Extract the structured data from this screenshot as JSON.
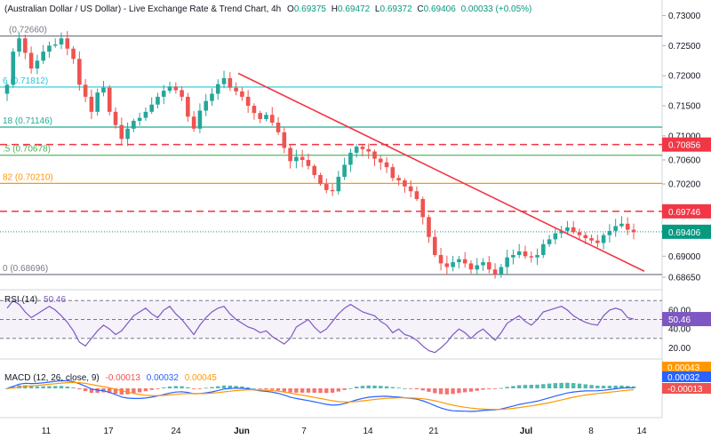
{
  "header": {
    "title": "(Australian Dollar / US Dollar) - Live Exchange Rate & Trend Chart, 4h",
    "open_label": "O",
    "open": "0.69375",
    "high_label": "H",
    "high": "0.69472",
    "low_label": "L",
    "low": "0.69372",
    "close_label": "C",
    "close": "0.69406",
    "change": "0.00033 (+0.05%)"
  },
  "colors": {
    "up": "#26a69a",
    "down": "#ef5350",
    "trend": "#f23645",
    "rsi": "#7e57c2",
    "macd": "#2962ff",
    "signal": "#ff9800",
    "fib_0": "#787b86",
    "fib_236": "#26c6da",
    "fib_382": "#22ab94",
    "fib_5": "#4caf50",
    "fib_618": "#ff9800",
    "fib_786": "#26c6da"
  },
  "chart_data": [
    {
      "type": "candlestick",
      "symbol": "AUD/USD",
      "timeframe": "4h",
      "ylim": [
        0.6855,
        0.7305
      ],
      "y_ticks": [
        "0.73000",
        "0.72500",
        "0.72000",
        "0.71500",
        "0.71000",
        "0.70600",
        "0.70200",
        "0.69000",
        "0.68650"
      ],
      "x_ticks": [
        "11",
        "17",
        "24",
        "Jun",
        "7",
        "14",
        "21",
        "Jul",
        "8",
        "14"
      ],
      "fib_levels": [
        {
          "label": "(0.72660)",
          "value": 0.7266
        },
        {
          "label": "6 (0.71812)",
          "value": 0.71812
        },
        {
          "label": "18 (0.71146)",
          "value": 0.71146
        },
        {
          "label": ".5 (0.70678)",
          "value": 0.70678
        },
        {
          "label": "82 (0.70210)",
          "value": 0.7021
        },
        {
          "label": "0 (0.68696)",
          "value": 0.68696
        }
      ],
      "resistance_levels": [
        {
          "label": "0.70856",
          "value": 0.70856
        },
        {
          "label": "0.69746",
          "value": 0.69746
        }
      ],
      "last_price": {
        "label": "0.69406",
        "value": 0.69406
      },
      "trendline": {
        "start": {
          "x": "May 31",
          "y": 0.7204
        },
        "end": {
          "x": "Jul 13",
          "y": 0.6875
        }
      },
      "close_series": [
        0.7185,
        0.724,
        0.7262,
        0.7238,
        0.7212,
        0.7225,
        0.724,
        0.725,
        0.7252,
        0.7262,
        0.7245,
        0.7228,
        0.7185,
        0.7165,
        0.714,
        0.7172,
        0.718,
        0.714,
        0.7118,
        0.7095,
        0.7112,
        0.7125,
        0.713,
        0.714,
        0.7152,
        0.7165,
        0.7175,
        0.7182,
        0.7176,
        0.7165,
        0.7132,
        0.7112,
        0.7142,
        0.7158,
        0.717,
        0.7186,
        0.7196,
        0.718,
        0.7174,
        0.7165,
        0.715,
        0.7138,
        0.7128,
        0.7135,
        0.7122,
        0.7106,
        0.708,
        0.7058,
        0.7065,
        0.706,
        0.705,
        0.7035,
        0.702,
        0.701,
        0.7008,
        0.7032,
        0.7052,
        0.7072,
        0.7082,
        0.7078,
        0.7074,
        0.7062,
        0.7056,
        0.7048,
        0.703,
        0.7026,
        0.7016,
        0.7008,
        0.6995,
        0.6965,
        0.6932,
        0.6902,
        0.6888,
        0.6882,
        0.689,
        0.6895,
        0.6888,
        0.6878,
        0.6885,
        0.689,
        0.6878,
        0.687,
        0.6882,
        0.6898,
        0.6902,
        0.6908,
        0.69,
        0.6898,
        0.6902,
        0.692,
        0.6928,
        0.6938,
        0.6942,
        0.6948,
        0.694,
        0.6935,
        0.693,
        0.6926,
        0.6922,
        0.6935,
        0.6942,
        0.695,
        0.6954,
        0.6944,
        0.694
      ]
    },
    {
      "type": "line",
      "title": "RSI (14)",
      "value_label": "50.46",
      "ylim": [
        10,
        75
      ],
      "y_ticks": [
        "60.00",
        "40.00",
        "20.00"
      ],
      "bands": [
        70,
        50,
        30
      ],
      "values": [
        62,
        70,
        66,
        58,
        52,
        56,
        60,
        64,
        60,
        54,
        47,
        38,
        26,
        22,
        30,
        38,
        44,
        40,
        34,
        38,
        46,
        54,
        58,
        62,
        56,
        52,
        60,
        64,
        56,
        50,
        42,
        34,
        44,
        52,
        58,
        62,
        64,
        56,
        50,
        46,
        42,
        40,
        36,
        38,
        32,
        28,
        24,
        30,
        42,
        46,
        50,
        42,
        36,
        40,
        48,
        56,
        62,
        66,
        62,
        58,
        56,
        54,
        48,
        44,
        36,
        40,
        34,
        32,
        28,
        22,
        17,
        15,
        20,
        26,
        34,
        40,
        36,
        30,
        36,
        40,
        34,
        28,
        36,
        46,
        50,
        54,
        48,
        44,
        50,
        58,
        60,
        62,
        64,
        60,
        54,
        50,
        47,
        45,
        44,
        54,
        60,
        62,
        60,
        52,
        50.46
      ]
    },
    {
      "type": "line",
      "title": "MACD (12, 26, close, 9)",
      "series": [
        {
          "name": "MACD",
          "value_label": "0.00032"
        },
        {
          "name": "Signal",
          "value_label": "0.00045"
        },
        {
          "name": "Histogram",
          "value_label": "-0.00013"
        }
      ],
      "y_ticks": [
        "0.00043",
        "0.00032",
        "-0.00013"
      ]
    }
  ]
}
